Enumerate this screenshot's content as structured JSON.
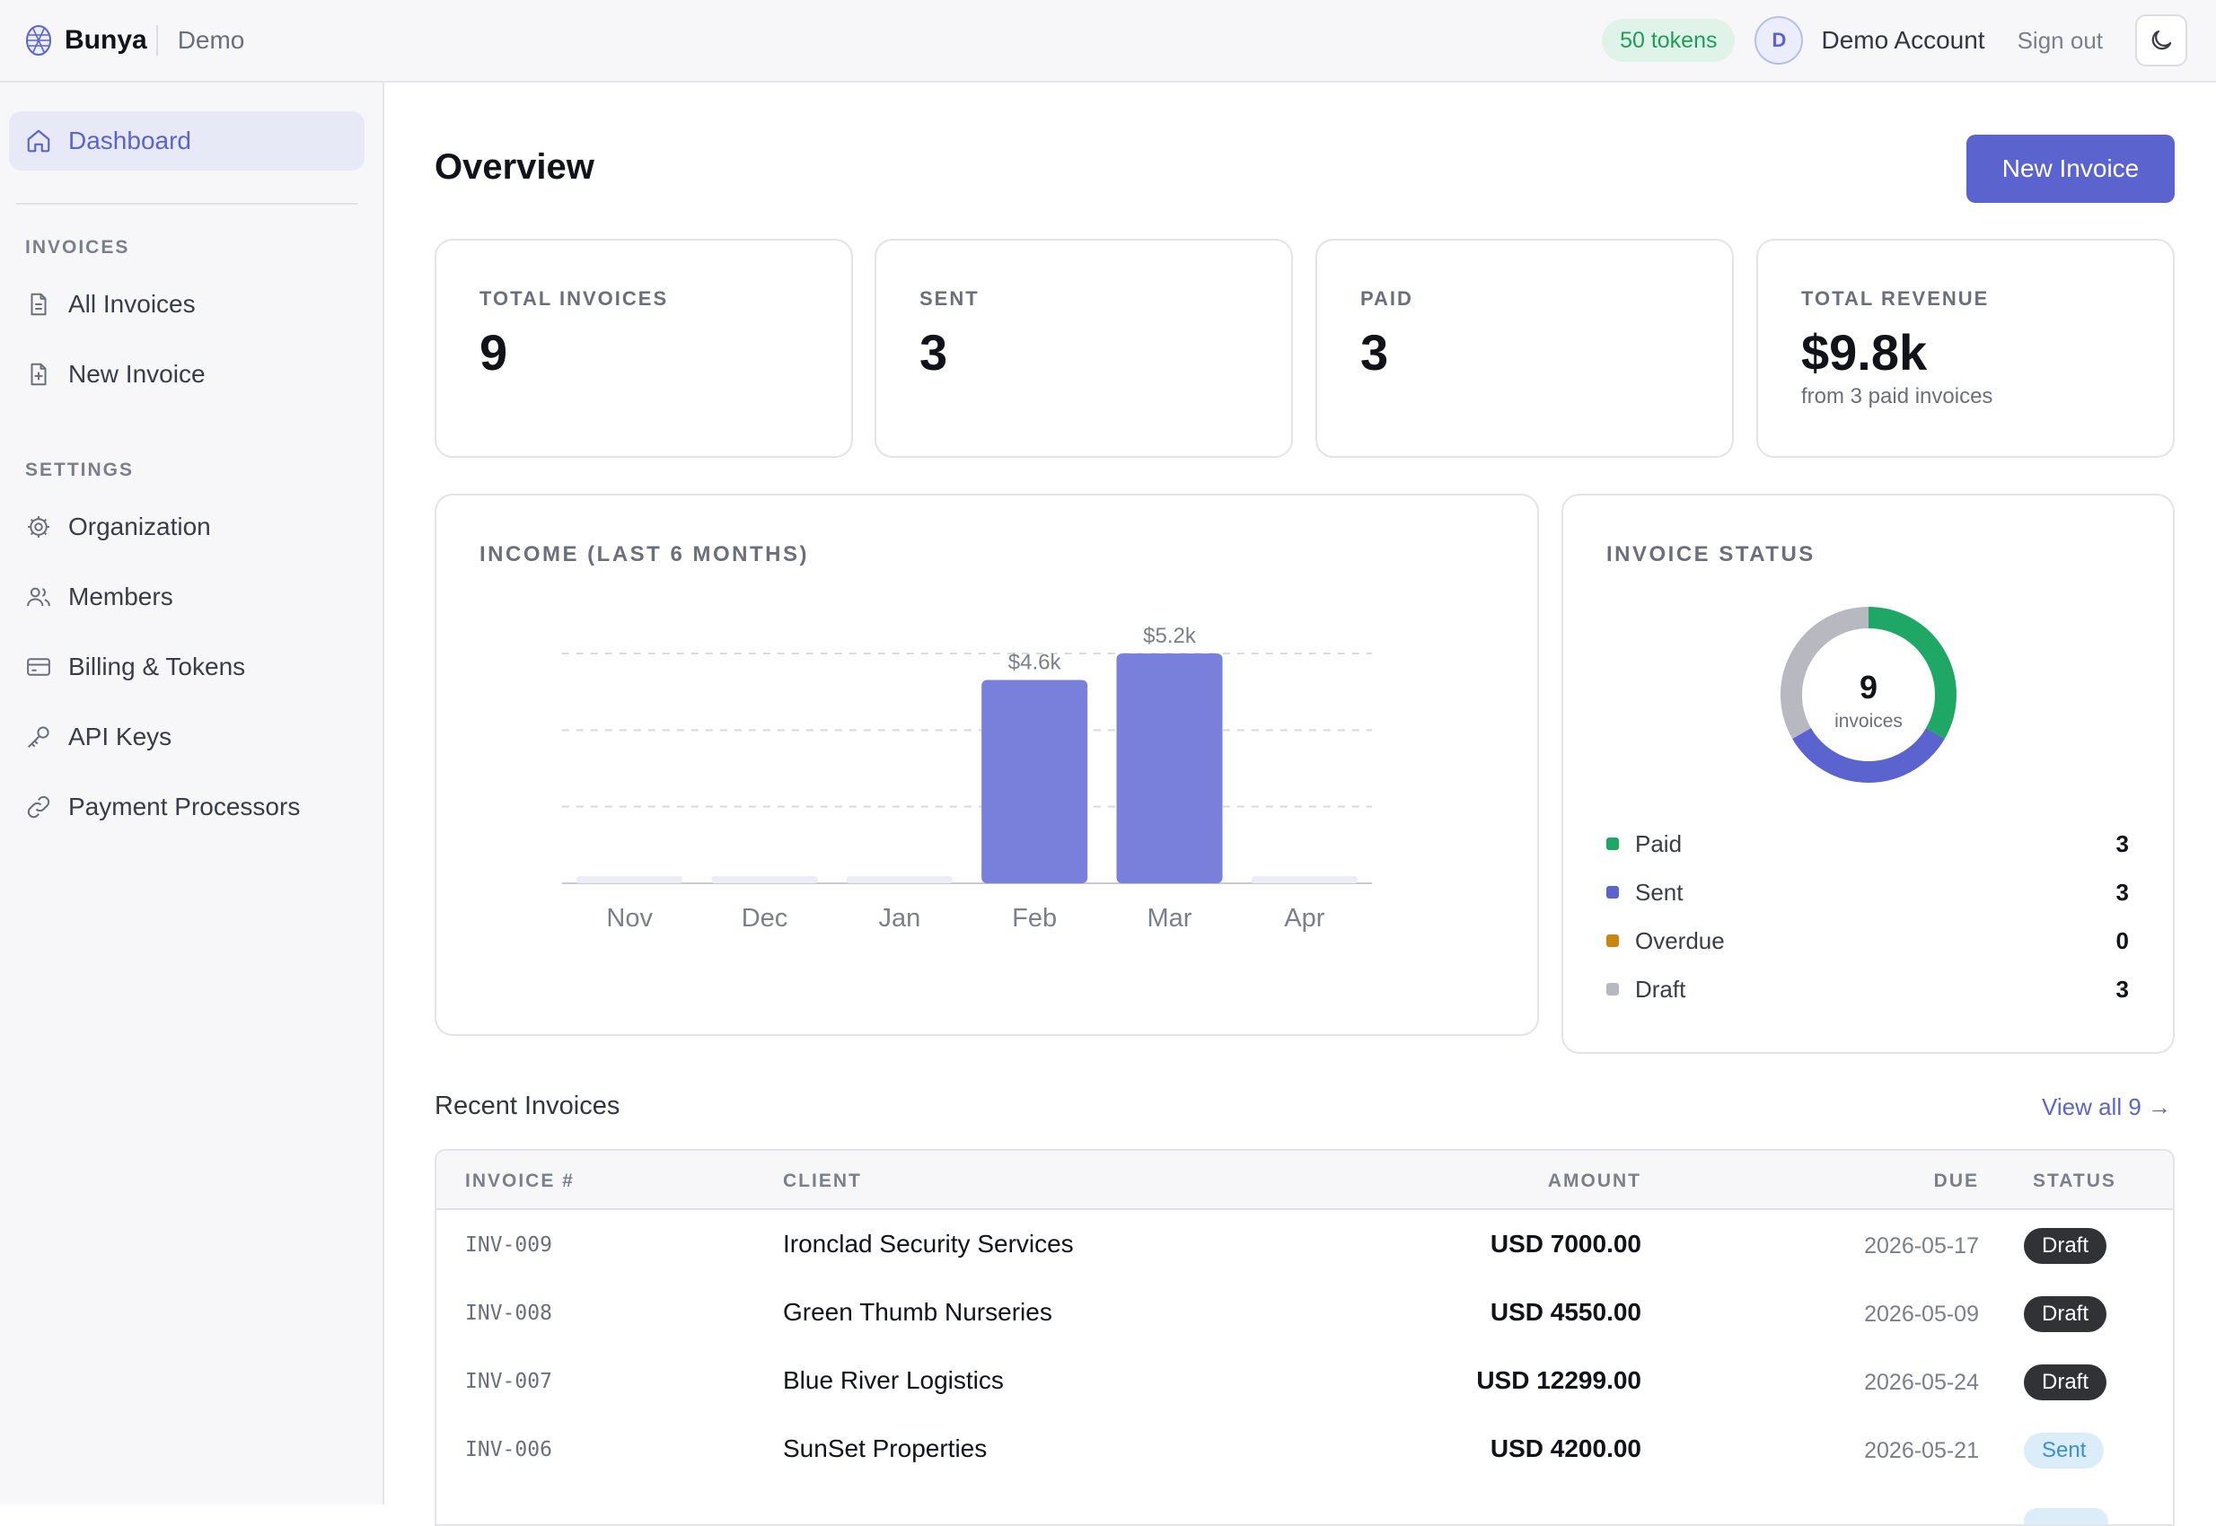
{
  "header": {
    "brand": "Bunya",
    "environment": "Demo",
    "tokens": "50 tokens",
    "avatar_initial": "D",
    "account_name": "Demo Account",
    "sign_out": "Sign out"
  },
  "sidebar": {
    "dashboard": "Dashboard",
    "sections": [
      {
        "label": "INVOICES",
        "items": [
          "All Invoices",
          "New Invoice"
        ]
      },
      {
        "label": "SETTINGS",
        "items": [
          "Organization",
          "Members",
          "Billing & Tokens",
          "API Keys",
          "Payment Processors"
        ]
      }
    ]
  },
  "main": {
    "title": "Overview",
    "new_invoice": "New Invoice",
    "stats": [
      {
        "label": "TOTAL INVOICES",
        "value": "9",
        "sub": ""
      },
      {
        "label": "SENT",
        "value": "3",
        "sub": ""
      },
      {
        "label": "PAID",
        "value": "3",
        "sub": ""
      },
      {
        "label": "TOTAL REVENUE",
        "value": "$9.8k",
        "sub": "from 3 paid invoices"
      }
    ],
    "income_title": "INCOME (LAST 6 MONTHS)",
    "status_title": "INVOICE STATUS",
    "donut_center_value": "9",
    "donut_center_label": "invoices",
    "status_legend": [
      {
        "label": "Paid",
        "count": "3",
        "color": "#1fa865"
      },
      {
        "label": "Sent",
        "count": "3",
        "color": "#5b63cf"
      },
      {
        "label": "Overdue",
        "count": "0",
        "color": "#c98712"
      },
      {
        "label": "Draft",
        "count": "3",
        "color": "#b8b9c0"
      }
    ],
    "recent_title": "Recent Invoices",
    "view_all": "View all 9 →"
  },
  "table": {
    "headers": [
      "INVOICE #",
      "CLIENT",
      "AMOUNT",
      "DUE",
      "STATUS"
    ],
    "rows": [
      {
        "id": "INV-009",
        "client": "Ironclad Security Services",
        "amount": "USD 7000.00",
        "due": "2026-05-17",
        "status": "Draft"
      },
      {
        "id": "INV-008",
        "client": "Green Thumb Nurseries",
        "amount": "USD 4550.00",
        "due": "2026-05-09",
        "status": "Draft"
      },
      {
        "id": "INV-007",
        "client": "Blue River Logistics",
        "amount": "USD 12299.00",
        "due": "2026-05-24",
        "status": "Draft"
      },
      {
        "id": "INV-006",
        "client": "SunSet Properties",
        "amount": "USD 4200.00",
        "due": "2026-05-21",
        "status": "Sent"
      }
    ]
  },
  "chart_data": [
    {
      "type": "bar",
      "title": "INCOME (LAST 6 MONTHS)",
      "categories": [
        "Nov",
        "Dec",
        "Jan",
        "Feb",
        "Mar",
        "Apr"
      ],
      "values": [
        0,
        0,
        0,
        4600,
        5200,
        0
      ],
      "data_labels": [
        "",
        "",
        "",
        "$4.6k",
        "$5.2k",
        ""
      ],
      "ylim": [
        0,
        5200
      ],
      "grid": true,
      "bar_color": "#7880dc",
      "empty_bar_color": "#ecedf7"
    },
    {
      "type": "pie",
      "title": "INVOICE STATUS",
      "labels": [
        "Paid",
        "Sent",
        "Overdue",
        "Draft"
      ],
      "values": [
        3,
        3,
        0,
        3
      ],
      "colors": [
        "#1fa865",
        "#5b63cf",
        "#c98712",
        "#b8b9c0"
      ]
    }
  ]
}
